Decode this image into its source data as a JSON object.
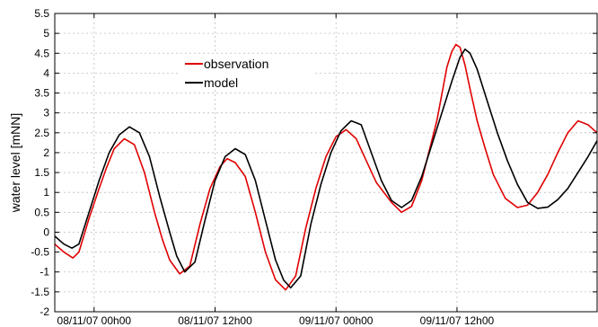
{
  "chart_data": {
    "type": "line",
    "xlabel": "",
    "ylabel": "water level [mNN]",
    "ylim": [
      -2,
      5.5
    ],
    "yticks": [
      -2,
      -1.5,
      -1,
      -0.5,
      0,
      0.5,
      1,
      1.5,
      2,
      2.5,
      3,
      3.5,
      4,
      4.5,
      5,
      5.5
    ],
    "x_unit": "hours since first x tick (08/11/07 00h00)",
    "xlim": [
      -3.9,
      49.9
    ],
    "xticks": [
      {
        "value": 0,
        "label": "08/11/07 00h00"
      },
      {
        "value": 12,
        "label": "08/11/07 12h00"
      },
      {
        "value": 24,
        "label": "09/11/07 00h00"
      },
      {
        "value": 36,
        "label": "09/11/07 12h00"
      }
    ],
    "grid": true,
    "legend": {
      "position": "top-left-center"
    },
    "series": [
      {
        "name": "observation",
        "color": "#e00000",
        "x": [
          -3.9,
          -3.0,
          -2.1,
          -1.5,
          -0.5,
          0.5,
          1.2,
          2.0,
          3.0,
          4.0,
          5.0,
          6.0,
          6.8,
          7.5,
          8.5,
          9.5,
          10.5,
          11.5,
          12.5,
          13.2,
          14.0,
          15.0,
          16.0,
          17.0,
          18.0,
          19.0,
          20.0,
          21.0,
          22.0,
          23.0,
          24.0,
          25.0,
          26.0,
          27.0,
          28.0,
          29.5,
          30.5,
          31.5,
          32.5,
          33.2,
          34.0,
          34.6,
          35.0,
          35.5,
          35.9,
          36.3,
          36.8,
          37.3,
          38.0,
          38.8,
          39.6,
          40.8,
          42.0,
          43.0,
          44.0,
          45.0,
          46.0,
          47.0,
          48.0,
          49.0,
          49.9
        ],
        "y": [
          -0.3,
          -0.5,
          -0.65,
          -0.5,
          0.35,
          1.1,
          1.6,
          2.1,
          2.35,
          2.2,
          1.5,
          0.5,
          -0.2,
          -0.7,
          -1.05,
          -0.85,
          0.2,
          1.1,
          1.65,
          1.85,
          1.75,
          1.4,
          0.5,
          -0.5,
          -1.2,
          -1.45,
          -1.1,
          0.1,
          1.1,
          1.9,
          2.4,
          2.58,
          2.35,
          1.8,
          1.25,
          0.75,
          0.5,
          0.65,
          1.3,
          2.0,
          2.8,
          3.6,
          4.15,
          4.55,
          4.72,
          4.65,
          4.2,
          3.6,
          2.8,
          2.1,
          1.45,
          0.85,
          0.62,
          0.68,
          1.0,
          1.45,
          2.0,
          2.5,
          2.8,
          2.7,
          2.5
        ]
      },
      {
        "name": "model",
        "color": "#000000",
        "x": [
          -3.9,
          -3.0,
          -2.2,
          -1.5,
          -0.5,
          0.5,
          1.5,
          2.5,
          3.5,
          4.5,
          5.5,
          6.5,
          7.5,
          8.2,
          9.0,
          10.0,
          11.0,
          12.0,
          13.0,
          14.0,
          15.0,
          16.0,
          17.0,
          18.0,
          18.8,
          19.5,
          20.5,
          21.5,
          22.5,
          23.5,
          24.5,
          25.5,
          26.5,
          27.5,
          28.5,
          29.5,
          30.5,
          31.5,
          32.5,
          33.5,
          34.5,
          35.5,
          36.3,
          36.8,
          37.3,
          38.0,
          39.0,
          40.0,
          41.0,
          42.0,
          43.0,
          44.0,
          45.0,
          46.0,
          47.0,
          48.0,
          49.0,
          49.9
        ],
        "y": [
          -0.1,
          -0.3,
          -0.4,
          -0.3,
          0.5,
          1.3,
          2.0,
          2.45,
          2.65,
          2.5,
          1.9,
          0.9,
          0.0,
          -0.6,
          -1.0,
          -0.75,
          0.3,
          1.3,
          1.9,
          2.1,
          1.95,
          1.3,
          0.3,
          -0.7,
          -1.2,
          -1.4,
          -1.1,
          0.2,
          1.2,
          2.0,
          2.55,
          2.8,
          2.7,
          2.0,
          1.3,
          0.8,
          0.62,
          0.8,
          1.4,
          2.2,
          3.0,
          3.8,
          4.4,
          4.6,
          4.5,
          4.1,
          3.3,
          2.5,
          1.8,
          1.2,
          0.75,
          0.6,
          0.63,
          0.82,
          1.1,
          1.5,
          1.9,
          2.3
        ]
      }
    ]
  }
}
